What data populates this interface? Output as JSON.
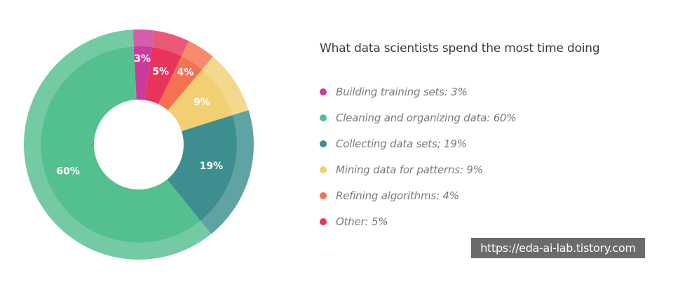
{
  "chart_data": {
    "type": "pie",
    "subtype": "donut",
    "title": "What data scientists spend the most time doing",
    "categories": [
      "Building training sets",
      "Other",
      "Refining algorithms",
      "Mining data for patterns",
      "Collecting data sets",
      "Cleaning and organizing data"
    ],
    "values": [
      3,
      5,
      4,
      9,
      19,
      60
    ],
    "slice_labels": [
      "3%",
      "5%",
      "4%",
      "9%",
      "19%",
      "60%"
    ],
    "colors": [
      "#cc3a9c",
      "#e8345a",
      "#f57151",
      "#f2cf72",
      "#3c8f8e",
      "#55c08f"
    ],
    "legend_position": "right",
    "legend": [
      {
        "label": "Building training sets: 3%",
        "color": "#cc3a9c"
      },
      {
        "label": "Cleaning and organizing data: 60%",
        "color": "#55c08f"
      },
      {
        "label": "Collecting data sets; 19%",
        "color": "#3c8f8e"
      },
      {
        "label": "Mining data for patterns: 9%",
        "color": "#f2cf72"
      },
      {
        "label": "Refining algorithms: 4%",
        "color": "#f57151"
      },
      {
        "label": "Other: 5%",
        "color": "#e8345a"
      }
    ]
  },
  "watermark": "https://eda-ai-lab.tistory.com"
}
